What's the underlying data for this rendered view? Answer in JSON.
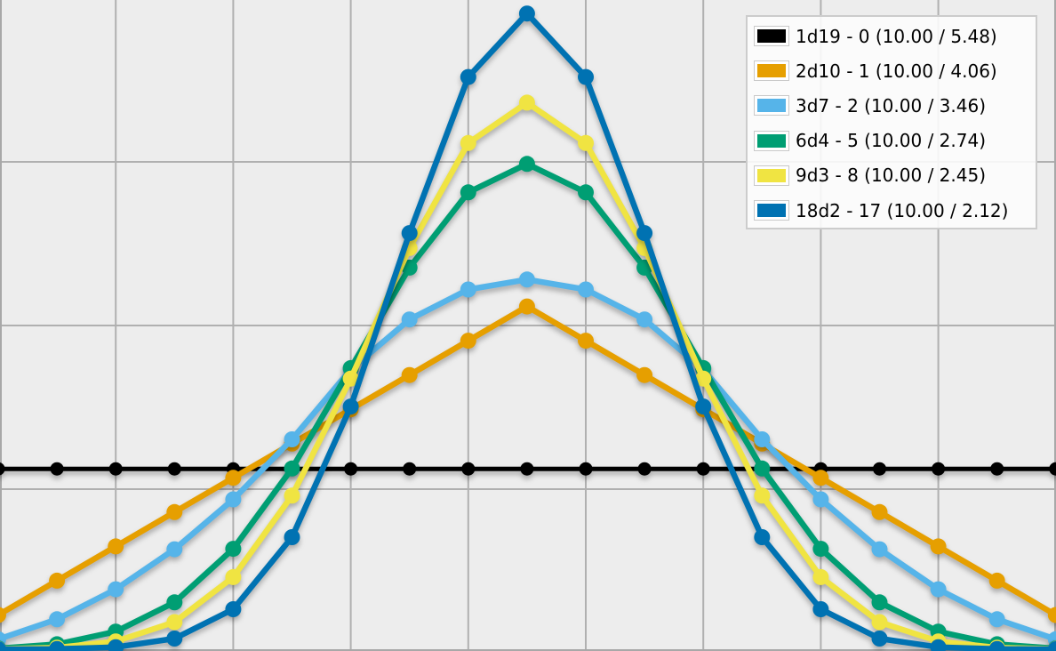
{
  "colors": {
    "plot_background": "#ededed",
    "gridline": "#b0b0b0",
    "plot_border": "#a8a8a8",
    "legend_border": "#cccccc",
    "legend_background": "#fdfdfd"
  },
  "chart_data": {
    "type": "line",
    "title": "",
    "xlabel": "",
    "ylabel": "",
    "y_unit": "percent_probability",
    "x": [
      1,
      2,
      3,
      4,
      5,
      6,
      7,
      8,
      9,
      10,
      11,
      12,
      13,
      14,
      15,
      16,
      17,
      18,
      19
    ],
    "x_gridlines_at": [
      3,
      5,
      7,
      9,
      11,
      13,
      15,
      17,
      19
    ],
    "ylim_percent": [
      0,
      19
    ],
    "grid": true,
    "legend_position": "top-right",
    "series": [
      {
        "name": "1d19 - 0",
        "legend_label": "1d19 - 0 (10.00 / 5.48)",
        "mean": "10.00",
        "sd": "5.48",
        "color": "#000000",
        "values": [
          5.2632,
          5.2632,
          5.2632,
          5.2632,
          5.2632,
          5.2632,
          5.2632,
          5.2632,
          5.2632,
          5.2632,
          5.2632,
          5.2632,
          5.2632,
          5.2632,
          5.2632,
          5.2632,
          5.2632,
          5.2632,
          5.2632
        ]
      },
      {
        "name": "2d10 - 1",
        "legend_label": "2d10 - 1 (10.00 / 4.06)",
        "mean": "10.00",
        "sd": "4.06",
        "color": "#e69f00",
        "values": [
          1,
          2,
          3,
          4,
          5,
          6,
          7,
          8,
          9,
          10,
          9,
          8,
          7,
          6,
          5,
          4,
          3,
          2,
          1
        ]
      },
      {
        "name": "3d7 - 2",
        "legend_label": "3d7 - 2 (10.00 / 3.46)",
        "mean": "10.00",
        "sd": "3.46",
        "color": "#56b4e9",
        "values": [
          0.2915,
          0.8746,
          1.7493,
          2.9155,
          4.3732,
          6.1224,
          8.1633,
          9.621,
          10.4956,
          10.7872,
          10.4956,
          9.621,
          8.1633,
          6.1224,
          4.3732,
          2.9155,
          1.7493,
          0.8746,
          0.2915
        ]
      },
      {
        "name": "6d4 - 5",
        "legend_label": "6d4 - 5 (10.00 / 2.74)",
        "mean": "10.00",
        "sd": "2.74",
        "color": "#009e73",
        "values": [
          0.0244,
          0.1465,
          0.5127,
          1.3672,
          2.9297,
          5.2734,
          8.2031,
          11.1328,
          13.3301,
          14.1602,
          13.3301,
          11.1328,
          8.2031,
          5.2734,
          2.9297,
          1.3672,
          0.5127,
          0.1465,
          0.0244
        ]
      },
      {
        "name": "9d3 - 8",
        "legend_label": "9d3 - 8 (10.00 / 2.45)",
        "mean": "10.00",
        "sd": "2.45",
        "color": "#f0e442",
        "values": [
          0.0051,
          0.0457,
          0.2286,
          0.7926,
          2.1033,
          4.481,
          7.8951,
          11.7055,
          14.7691,
          15.9477,
          14.7691,
          11.7055,
          7.8951,
          4.481,
          2.1033,
          0.7926,
          0.2286,
          0.0457,
          0.0051
        ]
      },
      {
        "name": "18d2 - 17",
        "legend_label": "18d2 - 17 (10.00 / 2.12)",
        "mean": "10.00",
        "sd": "2.12",
        "color": "#0072b2",
        "values": [
          0.0004,
          0.0069,
          0.0584,
          0.3113,
          1.1673,
          3.2684,
          7.0816,
          12.1399,
          16.6931,
          18.5471,
          16.6931,
          12.1399,
          7.0816,
          3.2684,
          1.1673,
          0.3113,
          0.0584,
          0.0069,
          0.0004
        ]
      }
    ]
  }
}
